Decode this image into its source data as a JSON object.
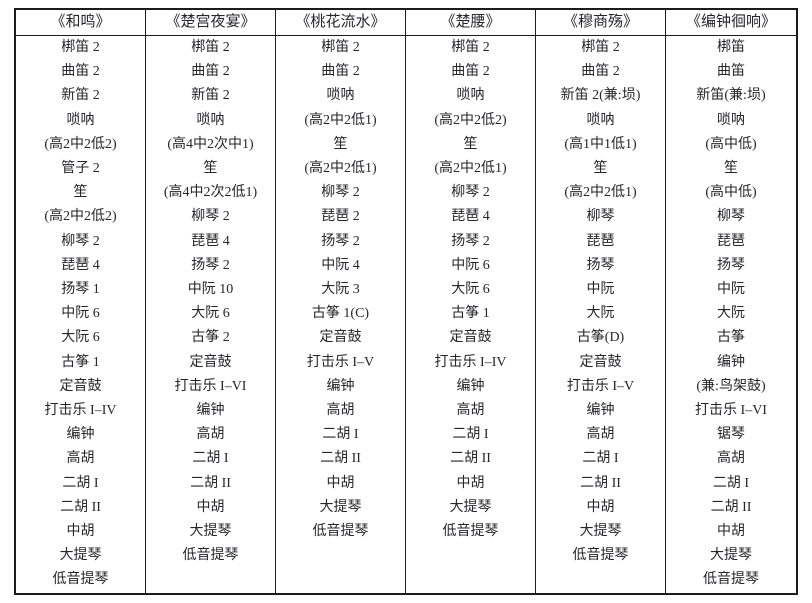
{
  "table": {
    "columns": [
      {
        "title": "《和鸣》",
        "items": [
          "梆笛 2",
          "曲笛 2",
          "新笛 2",
          "唢呐",
          "(高2中2低2)",
          "管子 2",
          "笙",
          "(高2中2低2)",
          "柳琴 2",
          "琵琶 4",
          "扬琴 1",
          "中阮 6",
          "大阮 6",
          "古筝 1",
          "定音鼓",
          "打击乐 I–IV",
          "编钟",
          "高胡",
          "二胡 I",
          "二胡 II",
          "中胡",
          "大提琴",
          "低音提琴"
        ]
      },
      {
        "title": "《楚宫夜宴》",
        "items": [
          "梆笛 2",
          "曲笛 2",
          "新笛 2",
          "唢呐",
          "(高4中2次中1)",
          "笙",
          "(高4中2次2低1)",
          "柳琴 2",
          "琵琶 4",
          "扬琴 2",
          "中阮 10",
          "大阮 6",
          "古筝 2",
          "定音鼓",
          "打击乐 I–VI",
          "编钟",
          "高胡",
          "二胡 I",
          "二胡 II",
          "中胡",
          "大提琴",
          "低音提琴"
        ]
      },
      {
        "title": "《桃花流水》",
        "items": [
          "梆笛 2",
          "曲笛 2",
          "唢呐",
          "(高2中2低1)",
          "笙",
          "(高2中2低1)",
          "柳琴 2",
          "琵琶 2",
          "扬琴 2",
          "中阮 4",
          "大阮 3",
          "古筝 1(C)",
          "定音鼓",
          "打击乐 I–V",
          "编钟",
          "高胡",
          "二胡 I",
          "二胡 II",
          "中胡",
          "大提琴",
          "低音提琴"
        ]
      },
      {
        "title": "《楚腰》",
        "items": [
          "梆笛 2",
          "曲笛 2",
          "唢呐",
          "(高2中2低2)",
          "笙",
          "(高2中2低1)",
          "柳琴 2",
          "琵琶 4",
          "扬琴 2",
          "中阮 6",
          "大阮 6",
          "古筝 1",
          "定音鼓",
          "打击乐 I–IV",
          "编钟",
          "高胡",
          "二胡 I",
          "二胡 II",
          "中胡",
          "大提琴",
          "低音提琴"
        ]
      },
      {
        "title": "《穆商殇》",
        "items": [
          "梆笛 2",
          "曲笛 2",
          "新笛 2(兼:埙)",
          "唢呐",
          "(高1中1低1)",
          "笙",
          "(高2中2低1)",
          "柳琴",
          "琵琶",
          "扬琴",
          "中阮",
          "大阮",
          "古筝(D)",
          "定音鼓",
          "打击乐 I–V",
          "编钟",
          "高胡",
          "二胡 I",
          "二胡 II",
          "中胡",
          "大提琴",
          "低音提琴"
        ]
      },
      {
        "title": "《编钟徊响》",
        "items": [
          "梆笛",
          "曲笛",
          "新笛(兼:埙)",
          "唢呐",
          "(高中低)",
          "笙",
          "(高中低)",
          "柳琴",
          "琵琶",
          "扬琴",
          "中阮",
          "大阮",
          "古筝",
          "编钟",
          "(兼:鸟架鼓)",
          "打击乐 I–VI",
          "锯琴",
          "高胡",
          "二胡 I",
          "二胡 II",
          "中胡",
          "大提琴",
          "低音提琴"
        ]
      }
    ]
  }
}
